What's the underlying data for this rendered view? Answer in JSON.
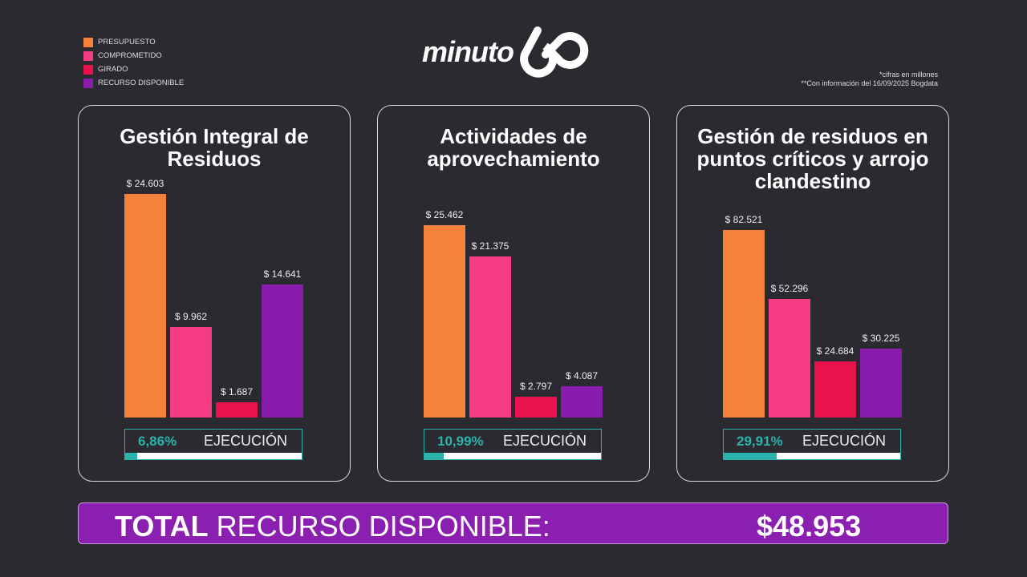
{
  "legend": [
    {
      "label": "PRESUPUESTO",
      "color": "#f5813b"
    },
    {
      "label": "COMPROMETIDO",
      "color": "#f53d85"
    },
    {
      "label": "GIRADO",
      "color": "#e8124c"
    },
    {
      "label": "RECURSO DISPONIBLE",
      "color": "#8a1cad"
    }
  ],
  "logo": {
    "text": "minuto",
    "number": "60"
  },
  "notes": [
    "*cifras en millones",
    "**Con información del 16/09/2025 Bogdata"
  ],
  "chart_data": [
    {
      "type": "bar",
      "title": "Gestión Integral de Residuos",
      "categories": [
        "PRESUPUESTO",
        "COMPROMETIDO",
        "GIRADO",
        "RECURSO DISPONIBLE"
      ],
      "values": [
        24603,
        9962,
        1687,
        14641
      ],
      "labels": [
        "$ 24.603",
        "$ 9.962",
        "$ 1.687",
        "$ 14.641"
      ],
      "execution_label": "EJECUCIÓN",
      "execution_text": "6,86%",
      "execution": 6.86
    },
    {
      "type": "bar",
      "title": "Actividades de aprovechamiento",
      "categories": [
        "PRESUPUESTO",
        "COMPROMETIDO",
        "GIRADO",
        "RECURSO DISPONIBLE"
      ],
      "values": [
        25462,
        21375,
        2797,
        4087
      ],
      "labels": [
        "$ 25.462",
        "$ 21.375",
        "$ 2.797",
        "$ 4.087"
      ],
      "execution_label": "EJECUCIÓN",
      "execution_text": "10,99%",
      "execution": 10.99
    },
    {
      "type": "bar",
      "title": "Gestión de residuos en puntos críticos y arrojo clandestino",
      "categories": [
        "PRESUPUESTO",
        "COMPROMETIDO",
        "GIRADO",
        "RECURSO DISPONIBLE"
      ],
      "values": [
        82521,
        52296,
        24684,
        30225
      ],
      "labels": [
        "$ 82.521",
        "$ 52.296",
        "$ 24.684",
        "$ 30.225"
      ],
      "execution_label": "EJECUCIÓN",
      "execution_text": "29,91%",
      "execution": 29.91
    }
  ],
  "total": {
    "bold": "TOTAL",
    "label": " RECURSO DISPONIBLE:",
    "value": "$48.953"
  }
}
